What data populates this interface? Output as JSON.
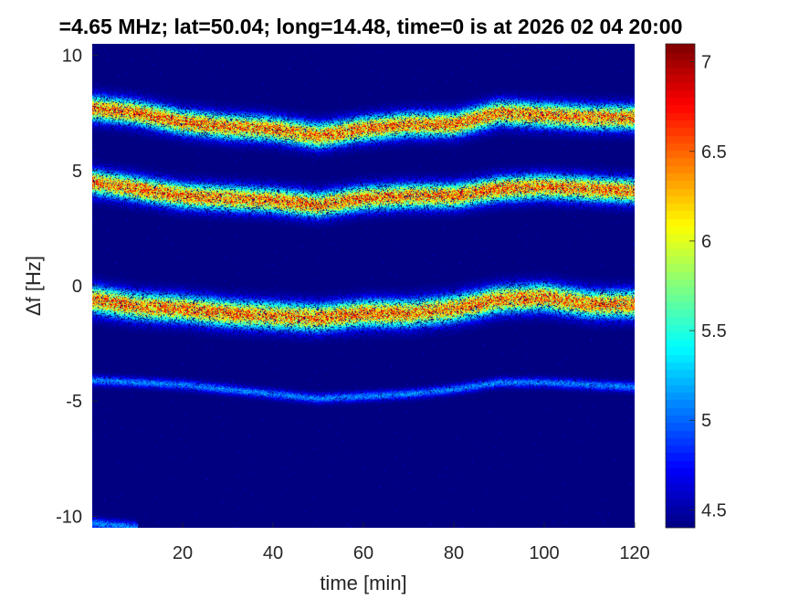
{
  "chart_data": {
    "type": "heatmap",
    "title": "=4.65 MHz;  lat=50.04; long=14.48, time=0 is at 2026 02 04 20:00",
    "xlabel": "time [min]",
    "ylabel": "Δf [Hz]",
    "xlim": [
      0,
      120
    ],
    "ylim": [
      -10.5,
      10.5
    ],
    "x_ticks": [
      20,
      40,
      60,
      80,
      100,
      120
    ],
    "y_ticks": [
      -10,
      -5,
      0,
      5,
      10
    ],
    "x_tick_labels": [
      "20",
      "40",
      "60",
      "80",
      "100",
      "120"
    ],
    "y_tick_labels": [
      "-10",
      "-5",
      "0",
      "5",
      "10"
    ],
    "colorbar": {
      "colormap": "jet",
      "range": [
        4.4,
        7.1
      ],
      "ticks": [
        4.5,
        5,
        5.5,
        6,
        6.5,
        7
      ],
      "tick_labels": [
        "4.5",
        "5",
        "5.5",
        "6",
        "6.5",
        "7"
      ]
    },
    "background_level": 4.4,
    "bands": [
      {
        "time": [
          0,
          10,
          20,
          30,
          40,
          50,
          60,
          70,
          80,
          90,
          100,
          110,
          120
        ],
        "freq": [
          7.7,
          7.5,
          7.1,
          6.9,
          6.8,
          6.5,
          6.8,
          7.0,
          7.0,
          7.5,
          7.4,
          7.3,
          7.3
        ],
        "peak": 7.1,
        "width": 1.1
      },
      {
        "time": [
          0,
          10,
          20,
          30,
          40,
          50,
          60,
          70,
          80,
          90,
          100,
          110,
          120
        ],
        "freq": [
          4.5,
          4.2,
          3.9,
          3.8,
          3.7,
          3.5,
          3.8,
          3.9,
          3.9,
          4.2,
          4.3,
          4.2,
          4.1
        ],
        "peak": 7.1,
        "width": 1.1
      },
      {
        "time": [
          0,
          10,
          20,
          30,
          40,
          50,
          60,
          70,
          80,
          90,
          100,
          110,
          120
        ],
        "freq": [
          -0.6,
          -0.9,
          -1.0,
          -1.2,
          -1.3,
          -1.4,
          -1.2,
          -1.2,
          -1.0,
          -0.6,
          -0.5,
          -0.8,
          -0.8
        ],
        "peak": 7.1,
        "width": 1.2
      },
      {
        "time": [
          0,
          10,
          20,
          30,
          40,
          50,
          60,
          70,
          80,
          90,
          100,
          110,
          120
        ],
        "freq": [
          -4.1,
          -4.2,
          -4.3,
          -4.5,
          -4.7,
          -4.9,
          -4.8,
          -4.7,
          -4.5,
          -4.2,
          -4.2,
          -4.3,
          -4.4
        ],
        "peak": 5.3,
        "width": 0.45
      },
      {
        "time": [
          0,
          10
        ],
        "freq": [
          -10.3,
          -10.5
        ],
        "peak": 5.3,
        "width": 0.5
      }
    ]
  }
}
